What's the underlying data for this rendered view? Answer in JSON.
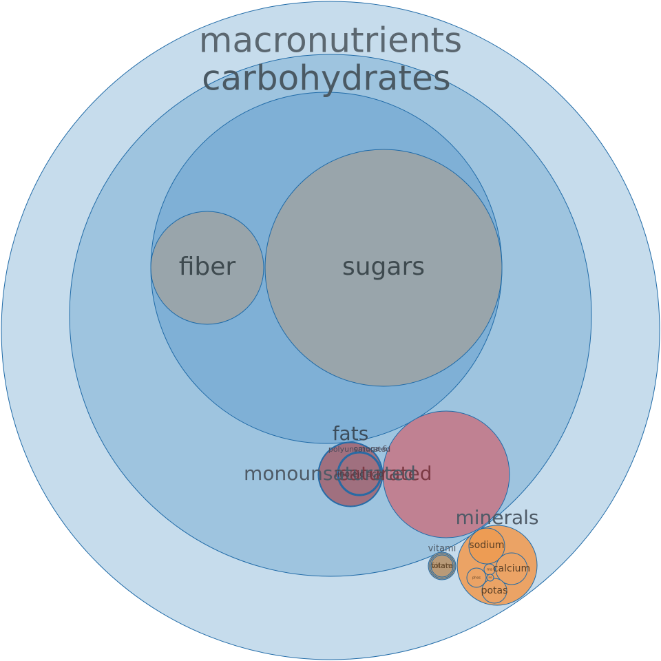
{
  "chart_data": {
    "type": "packed-bubble",
    "nodes": [
      {
        "id": "macronutrients",
        "label": "macronutrients",
        "parent": null,
        "group": "root"
      },
      {
        "id": "carbohydrates",
        "label": "carbohydrates",
        "parent": "macronutrients",
        "group": "carb"
      },
      {
        "id": "carbs-inner",
        "label": "",
        "parent": "carbohydrates",
        "group": "carb"
      },
      {
        "id": "fiber",
        "label": "fiber",
        "parent": "carbs-inner",
        "group": "gray"
      },
      {
        "id": "sugars",
        "label": "sugars",
        "parent": "carbs-inner",
        "group": "gray"
      },
      {
        "id": "fats",
        "label": "fats",
        "parent": "macronutrients",
        "group": "fat"
      },
      {
        "id": "monounsaturated",
        "label": "monounsaturated",
        "parent": "fats",
        "group": "fat"
      },
      {
        "id": "polyunsaturated",
        "label": "polyunsaturated",
        "parent": "fats",
        "group": "fat"
      },
      {
        "id": "omega-6",
        "label": "omega-6",
        "parent": "polyunsaturated",
        "group": "fat"
      },
      {
        "id": "linoleic-acid",
        "label": "linoleic acid",
        "parent": "omega-6",
        "group": "fat"
      },
      {
        "id": "saturated",
        "label": "saturated",
        "parent": "macronutrients",
        "group": "fat"
      },
      {
        "id": "minerals",
        "label": "minerals",
        "parent": "macronutrients",
        "group": "mineral"
      },
      {
        "id": "sodium",
        "label": "sodium",
        "parent": "minerals",
        "group": "mineral"
      },
      {
        "id": "calcium",
        "label": "calcium",
        "parent": "minerals",
        "group": "mineral"
      },
      {
        "id": "potassium",
        "label": "potas",
        "parent": "minerals",
        "group": "mineral"
      },
      {
        "id": "phosphorus",
        "label": "phos",
        "parent": "minerals",
        "group": "mineral"
      },
      {
        "id": "magnesium",
        "label": "ma",
        "parent": "minerals",
        "group": "mineral"
      },
      {
        "id": "iron",
        "label": "iro",
        "parent": "minerals",
        "group": "mineral"
      },
      {
        "id": "vitamins",
        "label": "vitami",
        "parent": "macronutrients",
        "group": "vitamin"
      },
      {
        "id": "vitamin-a",
        "label": "vitam",
        "parent": "vitamins",
        "group": "vitamin"
      },
      {
        "id": "folate",
        "label": "folate",
        "parent": "vitamins",
        "group": "vitamin"
      }
    ],
    "colors": {
      "root": "#c6dcec",
      "carb": "#9ec4df",
      "carb-inner": "#7fb0d6",
      "gray": "#99a5ab",
      "fat-outer": "#a98aa8",
      "fat": "#a0707f",
      "saturated": "#c08192",
      "mineral": "#eba365",
      "mineral-inner": "#ed9c54",
      "vitamin": "#b89a78",
      "stroke": "#1f6aa7"
    }
  }
}
